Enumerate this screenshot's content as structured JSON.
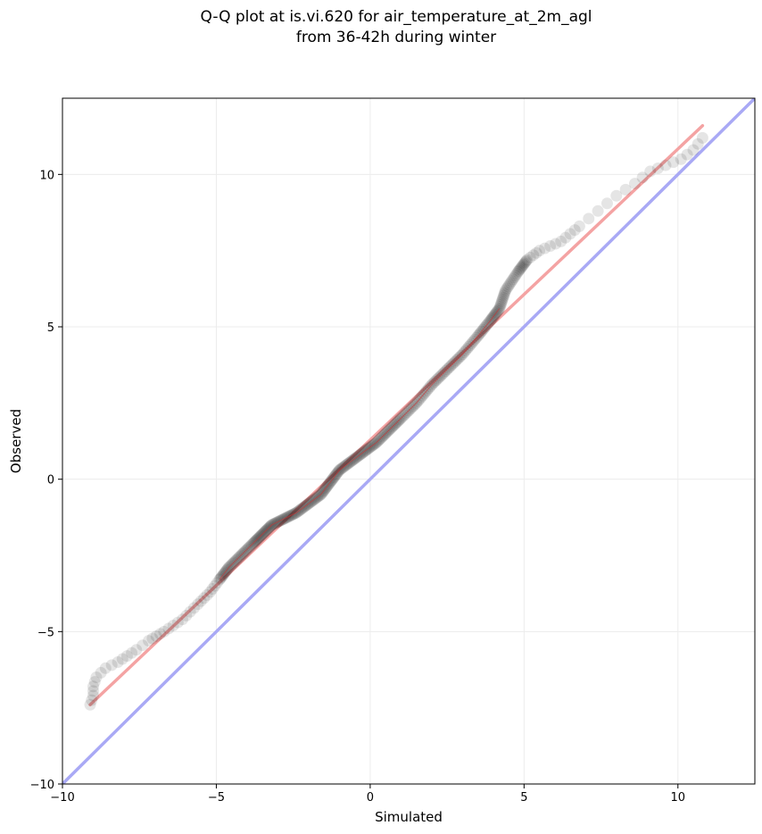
{
  "chart_data": {
    "type": "scatter",
    "title_lines": [
      "Q-Q plot at is.vi.620 for air_temperature_at_2m_agl",
      "from 36-42h during winter"
    ],
    "xlabel": "Simulated",
    "ylabel": "Observed",
    "xlim": [
      -10,
      12.5
    ],
    "ylim": [
      -10,
      12.5
    ],
    "xticks": [
      {
        "value": -10,
        "label": "−10"
      },
      {
        "value": -5,
        "label": "−5"
      },
      {
        "value": 0,
        "label": "0"
      },
      {
        "value": 5,
        "label": "5"
      },
      {
        "value": 10,
        "label": "10"
      }
    ],
    "yticks": [
      {
        "value": -10,
        "label": "−10"
      },
      {
        "value": -5,
        "label": "−5"
      },
      {
        "value": 0,
        "label": "0"
      },
      {
        "value": 5,
        "label": "5"
      },
      {
        "value": 10,
        "label": "10"
      }
    ],
    "grid": true,
    "colors": {
      "points": "#000000",
      "fit_line": "#f4a3a3",
      "fit_line_center": "#cc3333",
      "identity_line": "#a9a9f5"
    },
    "reference_lines": [
      {
        "kind": "identity",
        "from": [
          -10,
          -10
        ],
        "to": [
          12.5,
          12.5
        ],
        "color": "#a9a9f5"
      },
      {
        "kind": "fit",
        "from": [
          -9.1,
          -7.4
        ],
        "to": [
          10.8,
          11.6
        ],
        "color": "#f4a3a3"
      }
    ],
    "quantile_curve": [
      [
        -9.1,
        -7.4
      ],
      [
        -9.0,
        -7.1
      ],
      [
        -9.0,
        -6.8
      ],
      [
        -8.9,
        -6.5
      ],
      [
        -8.6,
        -6.2
      ],
      [
        -8.2,
        -6.0
      ],
      [
        -7.9,
        -5.8
      ],
      [
        -7.6,
        -5.6
      ],
      [
        -7.2,
        -5.3
      ],
      [
        -6.7,
        -5.0
      ],
      [
        -6.1,
        -4.6
      ],
      [
        -5.6,
        -4.1
      ],
      [
        -5.2,
        -3.7
      ],
      [
        -4.9,
        -3.3
      ],
      [
        -4.6,
        -2.9
      ],
      [
        -4.2,
        -2.5
      ],
      [
        -3.8,
        -2.1
      ],
      [
        -3.5,
        -1.8
      ],
      [
        -3.2,
        -1.5
      ],
      [
        -2.8,
        -1.3
      ],
      [
        -2.4,
        -1.1
      ],
      [
        -2.0,
        -0.8
      ],
      [
        -1.6,
        -0.5
      ],
      [
        -1.3,
        -0.1
      ],
      [
        -1.0,
        0.3
      ],
      [
        -0.6,
        0.6
      ],
      [
        -0.2,
        0.9
      ],
      [
        0.2,
        1.2
      ],
      [
        0.6,
        1.6
      ],
      [
        1.0,
        2.0
      ],
      [
        1.5,
        2.5
      ],
      [
        2.0,
        3.1
      ],
      [
        2.5,
        3.6
      ],
      [
        3.0,
        4.1
      ],
      [
        3.5,
        4.7
      ],
      [
        3.9,
        5.2
      ],
      [
        4.2,
        5.6
      ],
      [
        4.4,
        6.2
      ],
      [
        4.8,
        6.8
      ],
      [
        5.1,
        7.2
      ],
      [
        5.5,
        7.5
      ],
      [
        6.2,
        7.8
      ],
      [
        6.8,
        8.3
      ],
      [
        7.4,
        8.8
      ],
      [
        8.0,
        9.3
      ],
      [
        8.6,
        9.7
      ],
      [
        9.1,
        10.1
      ],
      [
        9.6,
        10.3
      ],
      [
        10.1,
        10.5
      ],
      [
        10.5,
        10.8
      ],
      [
        10.8,
        11.2
      ]
    ]
  }
}
